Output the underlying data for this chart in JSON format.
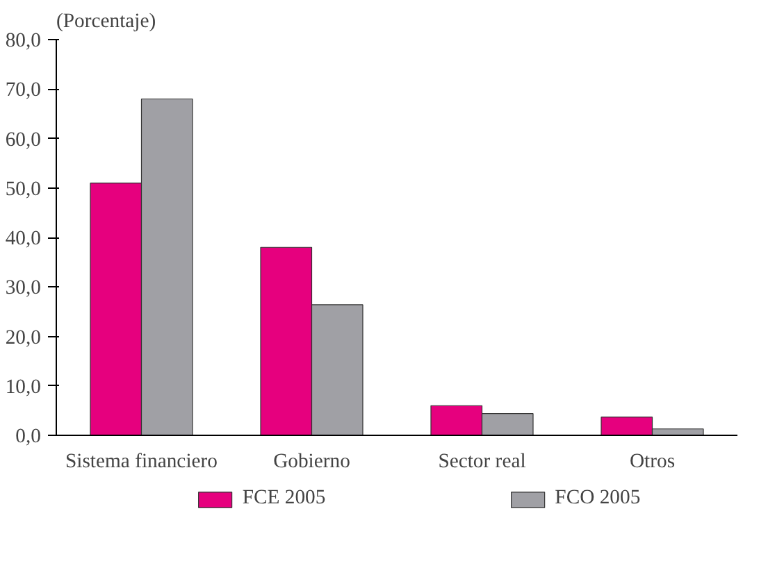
{
  "chart_data": {
    "type": "bar",
    "ylabel": "(Porcentaje)",
    "categories": [
      "Sistema financiero",
      "Gobierno",
      "Sector real",
      "Otros"
    ],
    "series": [
      {
        "name": "FCE 2005",
        "color": "#e6007e",
        "values": [
          51.0,
          38.0,
          6.0,
          3.7
        ]
      },
      {
        "name": "FCO 2005",
        "color": "#a0a0a5",
        "values": [
          68.0,
          26.4,
          4.4,
          1.3
        ]
      }
    ],
    "ylim": [
      0,
      80
    ],
    "yticks": [
      {
        "value": 0,
        "label": "0,0"
      },
      {
        "value": 10,
        "label": "10,0"
      },
      {
        "value": 20,
        "label": "20,0"
      },
      {
        "value": 30,
        "label": "30,0"
      },
      {
        "value": 40,
        "label": "40,0"
      },
      {
        "value": 50,
        "label": "50,0"
      },
      {
        "value": 60,
        "label": "60,0"
      },
      {
        "value": 70,
        "label": "70,0"
      },
      {
        "value": 80,
        "label": "80,0"
      }
    ],
    "grid": false,
    "legend": "bottom"
  }
}
